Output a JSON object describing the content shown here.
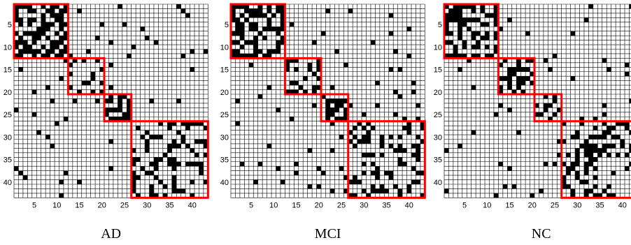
{
  "figure": {
    "captions": [
      "AD",
      "MCI",
      "NC"
    ]
  },
  "colors": {
    "cell_on": "#000000",
    "cell_off": "#ffffff",
    "grid": "#000000",
    "module_box": "#ff0000"
  },
  "chart_data": [
    {
      "type": "heatmap",
      "title": "AD",
      "size": 43,
      "xticks": [
        5,
        10,
        15,
        20,
        25,
        30,
        35,
        40
      ],
      "yticks": [
        5,
        10,
        15,
        20,
        25,
        30,
        35,
        40
      ],
      "xlim": [
        1,
        43
      ],
      "ylim": [
        1,
        43
      ],
      "modules": [
        [
          1,
          12
        ],
        [
          13,
          20
        ],
        [
          21,
          26
        ],
        [
          27,
          43
        ]
      ],
      "module_density": [
        0.55,
        0.42,
        0.62,
        0.3
      ],
      "off_module_density": 0.04,
      "seed": 11
    },
    {
      "type": "heatmap",
      "title": "MCI",
      "size": 43,
      "xticks": [
        5,
        10,
        15,
        20,
        25,
        30,
        35,
        40
      ],
      "yticks": [
        5,
        10,
        15,
        20,
        25,
        30,
        35,
        40
      ],
      "xlim": [
        1,
        43
      ],
      "ylim": [
        1,
        43
      ],
      "modules": [
        [
          1,
          12
        ],
        [
          13,
          20
        ],
        [
          21,
          26
        ],
        [
          27,
          43
        ]
      ],
      "module_density": [
        0.6,
        0.45,
        0.65,
        0.32
      ],
      "off_module_density": 0.035,
      "seed": 23
    },
    {
      "type": "heatmap",
      "title": "NC",
      "size": 43,
      "xticks": [
        5,
        10,
        15,
        20,
        25,
        30,
        35,
        40
      ],
      "yticks": [
        5,
        10,
        15,
        20,
        25,
        30,
        35,
        40
      ],
      "xlim": [
        1,
        43
      ],
      "ylim": [
        1,
        43
      ],
      "modules": [
        [
          1,
          12
        ],
        [
          13,
          20
        ],
        [
          21,
          26
        ],
        [
          27,
          43
        ]
      ],
      "module_density": [
        0.5,
        0.55,
        0.6,
        0.38
      ],
      "off_module_density": 0.03,
      "seed": 37
    }
  ]
}
